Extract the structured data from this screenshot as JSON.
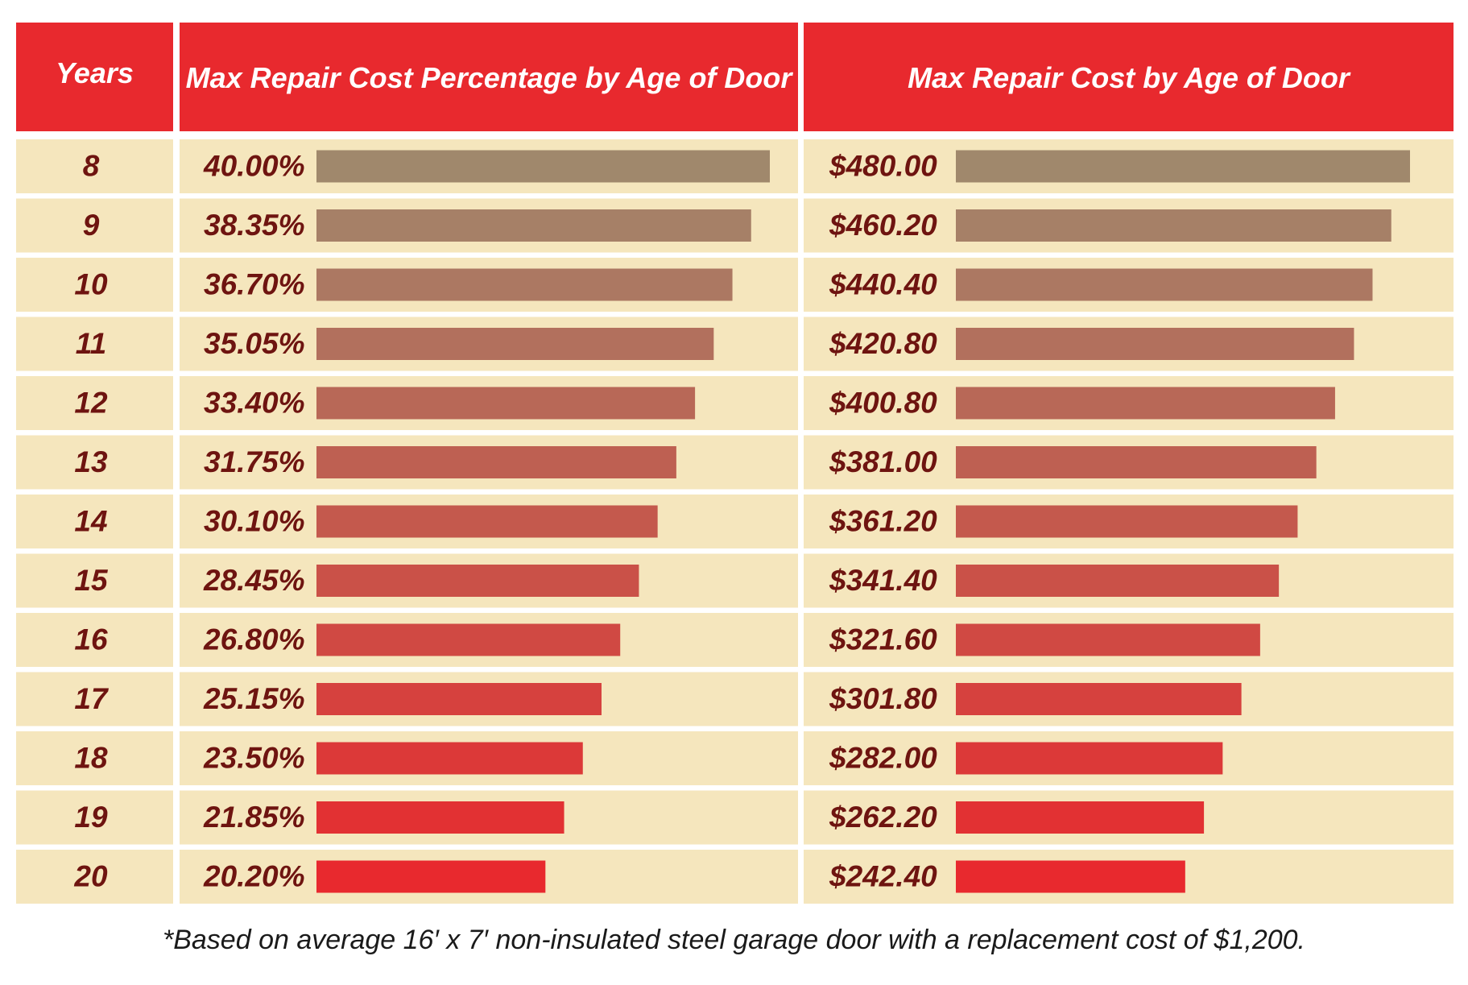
{
  "chart_data": {
    "type": "bar",
    "columns": {
      "years": "Years",
      "percentage": "Max Repair Cost Percentage by Age of Door",
      "cost": "Max Repair Cost by Age of Door"
    },
    "categories": [
      "8",
      "9",
      "10",
      "11",
      "12",
      "13",
      "14",
      "15",
      "16",
      "17",
      "18",
      "19",
      "20"
    ],
    "series": [
      {
        "name": "Max Repair Cost Percentage by Age of Door",
        "values": [
          40.0,
          38.35,
          36.7,
          35.05,
          33.4,
          31.75,
          30.1,
          28.45,
          26.8,
          25.15,
          23.5,
          21.85,
          20.2
        ],
        "labels": [
          "40.00%",
          "38.35%",
          "36.70%",
          "35.05%",
          "33.40%",
          "31.75%",
          "30.10%",
          "28.45%",
          "26.80%",
          "25.15%",
          "23.50%",
          "21.85%",
          "20.20%"
        ],
        "max": 40.0
      },
      {
        "name": "Max Repair Cost by Age of Door",
        "values": [
          480.0,
          460.2,
          440.4,
          420.8,
          400.8,
          381.0,
          361.2,
          341.4,
          321.6,
          301.8,
          282.0,
          262.2,
          242.4
        ],
        "labels": [
          "$480.00",
          "$460.20",
          "$440.40",
          "$420.80",
          "$400.80",
          "$381.00",
          "$361.20",
          "$341.40",
          "$321.60",
          "$301.80",
          "$282.00",
          "$262.20",
          "$242.40"
        ],
        "max": 480.0
      }
    ],
    "colors": {
      "header": "#e8292e",
      "row_background": "#f5e6bd",
      "bar_start": "#a0886c",
      "bar_end": "#e8292e",
      "text": "#6e1410"
    }
  },
  "footnote": "*Based on average 16′ x 7′ non-insulated steel garage door with a replacement cost of $1,200."
}
